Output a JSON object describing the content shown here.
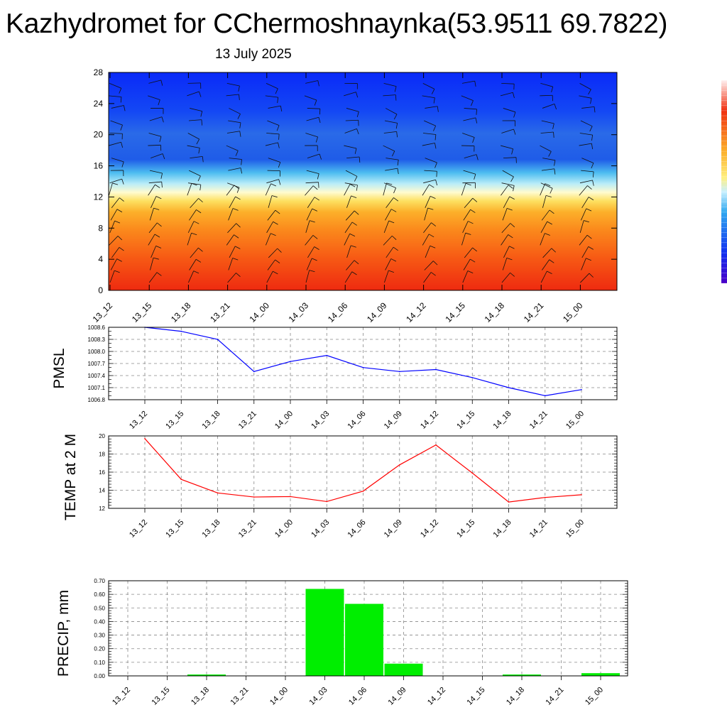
{
  "title": "Kazhydromet for CChermoshnaynka(53.9511 69.7822)",
  "subtitle": "13 July 2025",
  "colors": {
    "pmsl_line": "#0000ff",
    "temp_line": "#ff0000",
    "precip_bar": "#00ee00",
    "grid": "#888888"
  },
  "chart_data": [
    {
      "type": "heatmap",
      "name": "vertical-section",
      "categories": [
        "13_12",
        "13_15",
        "13_18",
        "13_21",
        "14_00",
        "14_03",
        "14_06",
        "14_09",
        "14_12",
        "14_15",
        "14_18",
        "14_21",
        "15_00"
      ],
      "y_ticks": [
        "0",
        "4",
        "8",
        "12",
        "16",
        "20",
        "24",
        "28"
      ],
      "ylim": [
        0,
        28
      ],
      "colorscale": "warm-to-cold (red/orange at bottom, yellow near 12, light blue near 14-16, blue above)",
      "overlay": "wind barbs",
      "colorbar_placement": "right"
    },
    {
      "type": "line",
      "ylabel": "PMSL",
      "categories": [
        "13_12",
        "13_15",
        "13_18",
        "13_21",
        "14_00",
        "14_03",
        "14_06",
        "14_09",
        "14_12",
        "14_15",
        "14_18",
        "14_21",
        "15_00"
      ],
      "values": [
        1008.6,
        1008.5,
        1008.3,
        1007.5,
        1007.75,
        1007.9,
        1007.6,
        1007.5,
        1007.55,
        1007.35,
        1007.1,
        1006.9,
        1007.05
      ],
      "ylim": [
        1006.8,
        1008.6
      ],
      "y_ticks": [
        "1006.8",
        "1007.1",
        "1007.4",
        "1007.7",
        "1008.0",
        "1008.3",
        "1008.6"
      ],
      "grid": true
    },
    {
      "type": "line",
      "ylabel": "TEMP at 2 M",
      "categories": [
        "13_12",
        "13_15",
        "13_18",
        "13_21",
        "14_00",
        "14_03",
        "14_06",
        "14_09",
        "14_12",
        "14_15",
        "14_18",
        "14_21",
        "15_00"
      ],
      "values": [
        19.7,
        15.2,
        13.7,
        13.25,
        13.3,
        12.75,
        13.9,
        16.8,
        19.0,
        15.9,
        12.7,
        13.2,
        13.5
      ],
      "ylim": [
        12,
        20
      ],
      "y_ticks": [
        "12",
        "14",
        "16",
        "18",
        "20"
      ],
      "grid": true
    },
    {
      "type": "bar",
      "ylabel": "PRECIP, mm",
      "categories": [
        "13_12",
        "13_15",
        "13_18",
        "13_21",
        "14_00",
        "14_03",
        "14_06",
        "14_09",
        "14_12",
        "14_15",
        "14_18",
        "14_21",
        "15_00"
      ],
      "values": [
        0,
        0,
        0.01,
        0,
        0,
        0.64,
        0.53,
        0.09,
        0,
        0,
        0.01,
        0,
        0.02
      ],
      "ylim": [
        0,
        0.7
      ],
      "y_ticks": [
        "0.00",
        "0.10",
        "0.20",
        "0.30",
        "0.40",
        "0.50",
        "0.60",
        "0.70"
      ],
      "grid": true
    }
  ]
}
